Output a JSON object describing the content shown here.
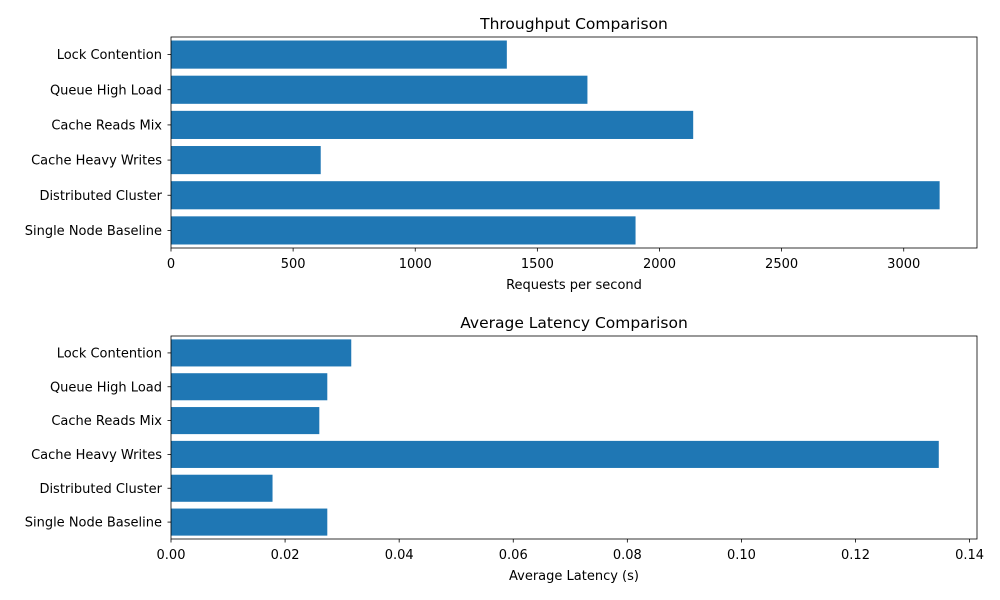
{
  "chart_data": [
    {
      "type": "bar",
      "orientation": "horizontal",
      "title": "Throughput Comparison",
      "xlabel": "Requests per second",
      "ylabel": "",
      "categories": [
        "Single Node Baseline",
        "Distributed Cluster",
        "Cache Heavy Writes",
        "Cache Reads Mix",
        "Queue High Load",
        "Lock Contention"
      ],
      "values": [
        1902,
        3147,
        613,
        2138,
        1705,
        1375
      ],
      "xlim": [
        0,
        3300
      ],
      "xticks": [
        0,
        500,
        1000,
        1500,
        2000,
        2500,
        3000
      ],
      "xtick_labels": [
        "0",
        "500",
        "1000",
        "1500",
        "2000",
        "2500",
        "3000"
      ],
      "color": "#1f77b4",
      "grid": false
    },
    {
      "type": "bar",
      "orientation": "horizontal",
      "title": "Average Latency Comparison",
      "xlabel": "Average Latency (s)",
      "ylabel": "",
      "categories": [
        "Single Node Baseline",
        "Distributed Cluster",
        "Cache Heavy Writes",
        "Cache Reads Mix",
        "Queue High Load",
        "Lock Contention"
      ],
      "values": [
        0.0274,
        0.0178,
        0.1346,
        0.026,
        0.0274,
        0.0316
      ],
      "xlim": [
        0,
        0.1413
      ],
      "xticks": [
        0,
        0.02,
        0.04,
        0.06,
        0.08,
        0.1,
        0.12,
        0.14
      ],
      "xtick_labels": [
        "0.00",
        "0.02",
        "0.04",
        "0.06",
        "0.08",
        "0.10",
        "0.12",
        "0.14"
      ],
      "color": "#1f77b4",
      "grid": false
    }
  ]
}
